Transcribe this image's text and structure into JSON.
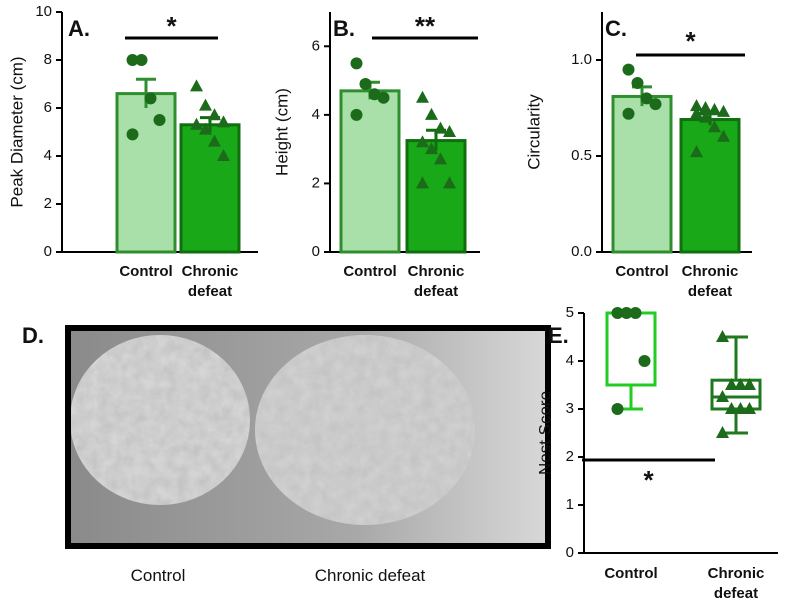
{
  "chart_data": [
    {
      "type": "bar",
      "panel": "A.",
      "significance": "*",
      "ylabel": "Peak Diameter (cm)",
      "categories": [
        "Control",
        "Chronic defeat"
      ],
      "values": [
        6.6,
        5.3
      ],
      "errors": [
        0.6,
        0.3
      ],
      "points": [
        [
          8.0,
          8.0,
          6.4,
          5.5,
          4.9
        ],
        [
          6.9,
          6.1,
          5.7,
          5.4,
          5.3,
          5.1,
          4.6,
          4.0
        ]
      ],
      "colors": [
        "#a9dfa9",
        "#18a818"
      ],
      "edge_colors": [
        "#2f8f2f",
        "#0f6f0f"
      ],
      "markers": [
        "circle",
        "triangle"
      ],
      "point_color": "#1b6b1b",
      "ylim": [
        0,
        10
      ],
      "yticks": [
        0,
        2,
        4,
        6,
        8,
        10
      ]
    },
    {
      "type": "bar",
      "panel": "B.",
      "significance": "**",
      "ylabel": "Height (cm)",
      "categories": [
        "Control",
        "Chronic defeat"
      ],
      "values": [
        4.7,
        3.25
      ],
      "errors": [
        0.25,
        0.3
      ],
      "points": [
        [
          5.5,
          4.9,
          4.6,
          4.5,
          4.0
        ],
        [
          4.5,
          4.0,
          3.6,
          3.5,
          3.2,
          3.0,
          2.7,
          2.0,
          2.0
        ]
      ],
      "colors": [
        "#a9dfa9",
        "#18a818"
      ],
      "edge_colors": [
        "#2f8f2f",
        "#0f6f0f"
      ],
      "markers": [
        "circle",
        "triangle"
      ],
      "point_color": "#1b6b1b",
      "ylim": [
        0,
        7
      ],
      "yticks": [
        0,
        2,
        4,
        6
      ]
    },
    {
      "type": "bar",
      "panel": "C.",
      "significance": "*",
      "ylabel": "Circularity",
      "categories": [
        "Control",
        "Chronic defeat"
      ],
      "values": [
        0.81,
        0.69
      ],
      "errors": [
        0.05,
        0.03
      ],
      "points": [
        [
          0.95,
          0.88,
          0.8,
          0.77,
          0.72
        ],
        [
          0.76,
          0.75,
          0.74,
          0.73,
          0.72,
          0.7,
          0.65,
          0.6,
          0.52
        ]
      ],
      "colors": [
        "#a9dfa9",
        "#18a818"
      ],
      "edge_colors": [
        "#2f8f2f",
        "#0f6f0f"
      ],
      "markers": [
        "circle",
        "triangle"
      ],
      "point_color": "#1b6b1b",
      "ylim": [
        0,
        1.25
      ],
      "yticks": [
        {
          "value": 0,
          "label": "0.0"
        },
        0.5,
        {
          "value": 1,
          "label": "1.0"
        }
      ]
    },
    {
      "type": "box",
      "panel": "E.",
      "significance": "*",
      "ylabel": "Nest Score",
      "categories": [
        "Control",
        "Chronic defeat"
      ],
      "boxes": [
        {
          "min": 3,
          "q1": 3.5,
          "median": 5,
          "q3": 5,
          "max": 5
        },
        {
          "min": 2.5,
          "q1": 3.0,
          "median": 3.25,
          "q3": 3.6,
          "max": 4.5
        }
      ],
      "points": [
        [
          5,
          5,
          5,
          4,
          3
        ],
        [
          4.5,
          3.5,
          3.5,
          3.5,
          3.25,
          3,
          3,
          3,
          2.5
        ]
      ],
      "colors": [
        "#22cc22",
        "#1f7a1f"
      ],
      "markers": [
        "circle",
        "triangle"
      ],
      "point_color": "#1b6b1b",
      "ylim": [
        0,
        5
      ],
      "yticks": [
        0,
        1,
        2,
        3,
        4,
        5
      ]
    }
  ],
  "image_panel": {
    "panel": "D.",
    "captions": [
      "Control",
      "Chronic defeat"
    ]
  }
}
